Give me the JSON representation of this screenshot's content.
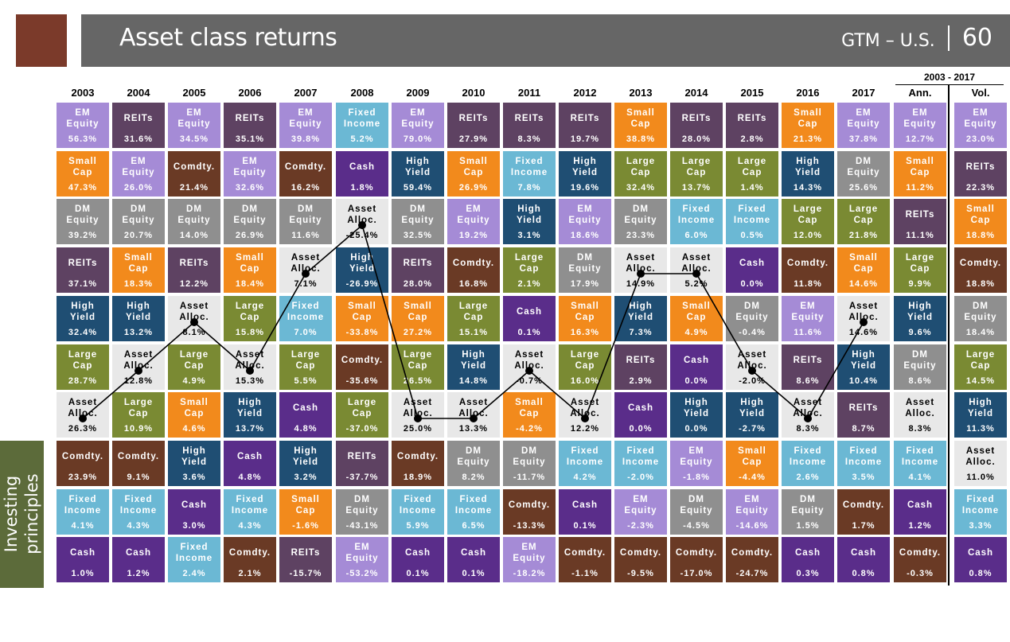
{
  "header": {
    "title": "Asset class returns",
    "tag": "GTM – U.S.",
    "page_number": "60"
  },
  "side_tab": {
    "text": "Investing\nprinciples"
  },
  "colors": {
    "EM Equity": "#a58bd6",
    "REITs": "#5e4262",
    "Small Cap": "#f28a1c",
    "Comdty.": "#6a3a25",
    "DM Equity": "#8f8f8f",
    "High Yield": "#1f4e73",
    "Fixed Income": "#6bb8d4",
    "Cash": "#5a2d8a",
    "Large Cap": "#7a8a33",
    "Asset Alloc.": "#e8e8e8"
  },
  "chart_data": {
    "type": "table",
    "title": "Asset class returns",
    "columns": [
      "2003",
      "2004",
      "2005",
      "2006",
      "2007",
      "2008",
      "2009",
      "2010",
      "2011",
      "2012",
      "2013",
      "2014",
      "2015",
      "2016",
      "2017"
    ],
    "summary_header": "2003 - 2017",
    "summary_columns": [
      "Ann.",
      "Vol."
    ],
    "highlight_series": "Asset Alloc.",
    "grid": [
      [
        [
          "EM Equity",
          "56.3%"
        ],
        [
          "REITs",
          "31.6%"
        ],
        [
          "EM Equity",
          "34.5%"
        ],
        [
          "REITs",
          "35.1%"
        ],
        [
          "EM Equity",
          "39.8%"
        ],
        [
          "Fixed Income",
          "5.2%"
        ],
        [
          "EM Equity",
          "79.0%"
        ],
        [
          "REITs",
          "27.9%"
        ],
        [
          "REITs",
          "8.3%"
        ],
        [
          "REITs",
          "19.7%"
        ],
        [
          "Small Cap",
          "38.8%"
        ],
        [
          "REITs",
          "28.0%"
        ],
        [
          "REITs",
          "2.8%"
        ],
        [
          "Small Cap",
          "21.3%"
        ],
        [
          "EM Equity",
          "37.8%"
        ],
        [
          "EM Equity",
          "12.7%"
        ],
        [
          "EM Equity",
          "23.0%"
        ]
      ],
      [
        [
          "Small Cap",
          "47.3%"
        ],
        [
          "EM Equity",
          "26.0%"
        ],
        [
          "Comdty.",
          "21.4%"
        ],
        [
          "EM Equity",
          "32.6%"
        ],
        [
          "Comdty.",
          "16.2%"
        ],
        [
          "Cash",
          "1.8%"
        ],
        [
          "High Yield",
          "59.4%"
        ],
        [
          "Small Cap",
          "26.9%"
        ],
        [
          "Fixed Income",
          "7.8%"
        ],
        [
          "High Yield",
          "19.6%"
        ],
        [
          "Large Cap",
          "32.4%"
        ],
        [
          "Large Cap",
          "13.7%"
        ],
        [
          "Large Cap",
          "1.4%"
        ],
        [
          "High Yield",
          "14.3%"
        ],
        [
          "DM Equity",
          "25.6%"
        ],
        [
          "Small Cap",
          "11.2%"
        ],
        [
          "REITs",
          "22.3%"
        ]
      ],
      [
        [
          "DM Equity",
          "39.2%"
        ],
        [
          "DM Equity",
          "20.7%"
        ],
        [
          "DM Equity",
          "14.0%"
        ],
        [
          "DM Equity",
          "26.9%"
        ],
        [
          "DM Equity",
          "11.6%"
        ],
        [
          "Asset Alloc.",
          "-25.4%"
        ],
        [
          "DM Equity",
          "32.5%"
        ],
        [
          "EM Equity",
          "19.2%"
        ],
        [
          "High Yield",
          "3.1%"
        ],
        [
          "EM Equity",
          "18.6%"
        ],
        [
          "DM Equity",
          "23.3%"
        ],
        [
          "Fixed Income",
          "6.0%"
        ],
        [
          "Fixed Income",
          "0.5%"
        ],
        [
          "Large Cap",
          "12.0%"
        ],
        [
          "Large Cap",
          "21.8%"
        ],
        [
          "REITs",
          "11.1%"
        ],
        [
          "Small Cap",
          "18.8%"
        ]
      ],
      [
        [
          "REITs",
          "37.1%"
        ],
        [
          "Small Cap",
          "18.3%"
        ],
        [
          "REITs",
          "12.2%"
        ],
        [
          "Small Cap",
          "18.4%"
        ],
        [
          "Asset Alloc.",
          "7.1%"
        ],
        [
          "High Yield",
          "-26.9%"
        ],
        [
          "REITs",
          "28.0%"
        ],
        [
          "Comdty.",
          "16.8%"
        ],
        [
          "Large Cap",
          "2.1%"
        ],
        [
          "DM Equity",
          "17.9%"
        ],
        [
          "Asset Alloc.",
          "14.9%"
        ],
        [
          "Asset Alloc.",
          "5.2%"
        ],
        [
          "Cash",
          "0.0%"
        ],
        [
          "Comdty.",
          "11.8%"
        ],
        [
          "Small Cap",
          "14.6%"
        ],
        [
          "Large Cap",
          "9.9%"
        ],
        [
          "Comdty.",
          "18.8%"
        ]
      ],
      [
        [
          "High Yield",
          "32.4%"
        ],
        [
          "High Yield",
          "13.2%"
        ],
        [
          "Asset Alloc.",
          "8.1%"
        ],
        [
          "Large Cap",
          "15.8%"
        ],
        [
          "Fixed Income",
          "7.0%"
        ],
        [
          "Small Cap",
          "-33.8%"
        ],
        [
          "Small Cap",
          "27.2%"
        ],
        [
          "Large Cap",
          "15.1%"
        ],
        [
          "Cash",
          "0.1%"
        ],
        [
          "Small Cap",
          "16.3%"
        ],
        [
          "High Yield",
          "7.3%"
        ],
        [
          "Small Cap",
          "4.9%"
        ],
        [
          "DM Equity",
          "-0.4%"
        ],
        [
          "EM Equity",
          "11.6%"
        ],
        [
          "Asset Alloc.",
          "14.6%"
        ],
        [
          "High Yield",
          "9.6%"
        ],
        [
          "DM Equity",
          "18.4%"
        ]
      ],
      [
        [
          "Large Cap",
          "28.7%"
        ],
        [
          "Asset Alloc.",
          "12.8%"
        ],
        [
          "Large Cap",
          "4.9%"
        ],
        [
          "Asset Alloc.",
          "15.3%"
        ],
        [
          "Large Cap",
          "5.5%"
        ],
        [
          "Comdty.",
          "-35.6%"
        ],
        [
          "Large Cap",
          "26.5%"
        ],
        [
          "High Yield",
          "14.8%"
        ],
        [
          "Asset Alloc.",
          "-0.7%"
        ],
        [
          "Large Cap",
          "16.0%"
        ],
        [
          "REITs",
          "2.9%"
        ],
        [
          "Cash",
          "0.0%"
        ],
        [
          "Asset Alloc.",
          "-2.0%"
        ],
        [
          "REITs",
          "8.6%"
        ],
        [
          "High Yield",
          "10.4%"
        ],
        [
          "DM Equity",
          "8.6%"
        ],
        [
          "Large Cap",
          "14.5%"
        ]
      ],
      [
        [
          "Asset Alloc.",
          "26.3%"
        ],
        [
          "Large Cap",
          "10.9%"
        ],
        [
          "Small Cap",
          "4.6%"
        ],
        [
          "High Yield",
          "13.7%"
        ],
        [
          "Cash",
          "4.8%"
        ],
        [
          "Large Cap",
          "-37.0%"
        ],
        [
          "Asset Alloc.",
          "25.0%"
        ],
        [
          "Asset Alloc.",
          "13.3%"
        ],
        [
          "Small Cap",
          "-4.2%"
        ],
        [
          "Asset Alloc.",
          "12.2%"
        ],
        [
          "Cash",
          "0.0%"
        ],
        [
          "High Yield",
          "0.0%"
        ],
        [
          "High Yield",
          "-2.7%"
        ],
        [
          "Asset Alloc.",
          "8.3%"
        ],
        [
          "REITs",
          "8.7%"
        ],
        [
          "Asset Alloc.",
          "8.3%"
        ],
        [
          "High Yield",
          "11.3%"
        ]
      ],
      [
        [
          "Comdty.",
          "23.9%"
        ],
        [
          "Comdty.",
          "9.1%"
        ],
        [
          "High Yield",
          "3.6%"
        ],
        [
          "Cash",
          "4.8%"
        ],
        [
          "High Yield",
          "3.2%"
        ],
        [
          "REITs",
          "-37.7%"
        ],
        [
          "Comdty.",
          "18.9%"
        ],
        [
          "DM Equity",
          "8.2%"
        ],
        [
          "DM Equity",
          "-11.7%"
        ],
        [
          "Fixed Income",
          "4.2%"
        ],
        [
          "Fixed Income",
          "-2.0%"
        ],
        [
          "EM Equity",
          "-1.8%"
        ],
        [
          "Small Cap",
          "-4.4%"
        ],
        [
          "Fixed Income",
          "2.6%"
        ],
        [
          "Fixed Income",
          "3.5%"
        ],
        [
          "Fixed Income",
          "4.1%"
        ],
        [
          "Asset Alloc.",
          "11.0%"
        ]
      ],
      [
        [
          "Fixed Income",
          "4.1%"
        ],
        [
          "Fixed Income",
          "4.3%"
        ],
        [
          "Cash",
          "3.0%"
        ],
        [
          "Fixed Income",
          "4.3%"
        ],
        [
          "Small Cap",
          "-1.6%"
        ],
        [
          "DM Equity",
          "-43.1%"
        ],
        [
          "Fixed Income",
          "5.9%"
        ],
        [
          "Fixed Income",
          "6.5%"
        ],
        [
          "Comdty.",
          "-13.3%"
        ],
        [
          "Cash",
          "0.1%"
        ],
        [
          "EM Equity",
          "-2.3%"
        ],
        [
          "DM Equity",
          "-4.5%"
        ],
        [
          "EM Equity",
          "-14.6%"
        ],
        [
          "DM Equity",
          "1.5%"
        ],
        [
          "Comdty.",
          "1.7%"
        ],
        [
          "Cash",
          "1.2%"
        ],
        [
          "Fixed Income",
          "3.3%"
        ]
      ],
      [
        [
          "Cash",
          "1.0%"
        ],
        [
          "Cash",
          "1.2%"
        ],
        [
          "Fixed Income",
          "2.4%"
        ],
        [
          "Comdty.",
          "2.1%"
        ],
        [
          "REITs",
          "-15.7%"
        ],
        [
          "EM Equity",
          "-53.2%"
        ],
        [
          "Cash",
          "0.1%"
        ],
        [
          "Cash",
          "0.1%"
        ],
        [
          "EM Equity",
          "-18.2%"
        ],
        [
          "Comdty.",
          "-1.1%"
        ],
        [
          "Comdty.",
          "-9.5%"
        ],
        [
          "Comdty.",
          "-17.0%"
        ],
        [
          "Comdty.",
          "-24.7%"
        ],
        [
          "Cash",
          "0.3%"
        ],
        [
          "Cash",
          "0.8%"
        ],
        [
          "Comdty.",
          "-0.3%"
        ],
        [
          "Cash",
          "0.8%"
        ]
      ]
    ]
  }
}
